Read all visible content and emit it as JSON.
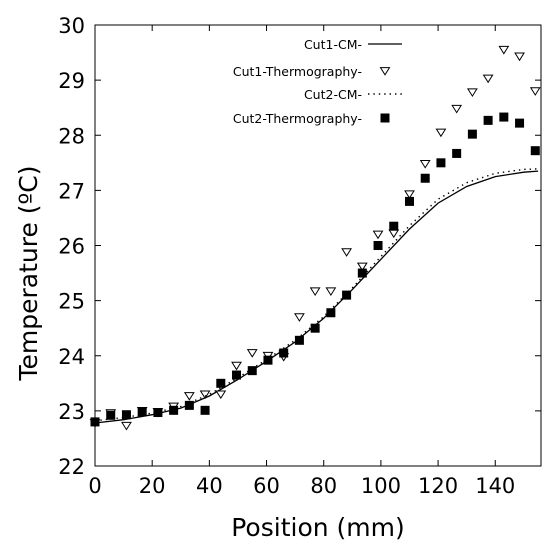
{
  "chart_data": {
    "type": "scatter",
    "title": "",
    "xlabel": "Position (mm)",
    "ylabel": "Temperature (ºC)",
    "xlim": [
      0,
      156
    ],
    "ylim": [
      22,
      30
    ],
    "xticks": [
      0,
      20,
      40,
      60,
      80,
      100,
      120,
      140
    ],
    "yticks": [
      22,
      23,
      24,
      25,
      26,
      27,
      28,
      29,
      30
    ],
    "grid": false,
    "legend_position": "top-right",
    "series": [
      {
        "name": "Cut1-CM-",
        "style": "solid-line",
        "color": "#000000",
        "x": [
          0,
          10,
          20,
          30,
          40,
          50,
          60,
          70,
          80,
          90,
          100,
          110,
          120,
          130,
          140,
          150,
          155
        ],
        "y": [
          22.78,
          22.84,
          22.93,
          23.05,
          23.27,
          23.57,
          23.9,
          24.25,
          24.68,
          25.2,
          25.75,
          26.3,
          26.77,
          27.07,
          27.25,
          27.33,
          27.35
        ]
      },
      {
        "name": "Cut1-Thermography-",
        "style": "open-triangle-down",
        "color": "#000000",
        "x": [
          0,
          5.5,
          11,
          16.5,
          22,
          27.5,
          33,
          38.5,
          44,
          49.5,
          55,
          60.5,
          66,
          71.5,
          77,
          82.5,
          88,
          93.5,
          99,
          104.5,
          110,
          115.5,
          121,
          126.5,
          132,
          137.5,
          143,
          148.5,
          154
        ],
        "y": [
          22.78,
          22.96,
          22.73,
          23.0,
          22.98,
          23.08,
          23.27,
          23.3,
          23.3,
          23.82,
          24.05,
          24.0,
          23.98,
          24.7,
          25.17,
          25.17,
          25.88,
          25.62,
          26.2,
          26.22,
          26.93,
          27.48,
          28.05,
          28.48,
          28.78,
          29.03,
          29.55,
          29.43,
          28.8
        ]
      },
      {
        "name": "Cut2-CM-",
        "style": "dotted-line",
        "color": "#000000",
        "x": [
          0,
          10,
          20,
          30,
          40,
          50,
          60,
          70,
          80,
          90,
          100,
          110,
          120,
          130,
          140,
          150,
          155
        ],
        "y": [
          22.82,
          22.88,
          22.96,
          23.08,
          23.3,
          23.6,
          23.93,
          24.28,
          24.71,
          25.23,
          25.8,
          26.36,
          26.84,
          27.14,
          27.31,
          27.38,
          27.39
        ]
      },
      {
        "name": "Cut2-Thermography-",
        "style": "filled-square",
        "color": "#000000",
        "x": [
          0,
          5.5,
          11,
          16.5,
          22,
          27.5,
          33,
          38.5,
          44,
          49.5,
          55,
          60.5,
          66,
          71.5,
          77,
          82.5,
          88,
          93.5,
          99,
          104.5,
          110,
          115.5,
          121,
          126.5,
          132,
          137.5,
          143,
          148.5,
          154
        ],
        "y": [
          22.8,
          22.92,
          22.93,
          22.98,
          22.97,
          23.01,
          23.1,
          23.01,
          23.5,
          23.65,
          23.73,
          23.92,
          24.05,
          24.28,
          24.5,
          24.78,
          25.1,
          25.5,
          26.0,
          26.35,
          26.8,
          27.22,
          27.5,
          27.67,
          28.02,
          28.27,
          28.33,
          28.22,
          27.72
        ]
      }
    ]
  }
}
